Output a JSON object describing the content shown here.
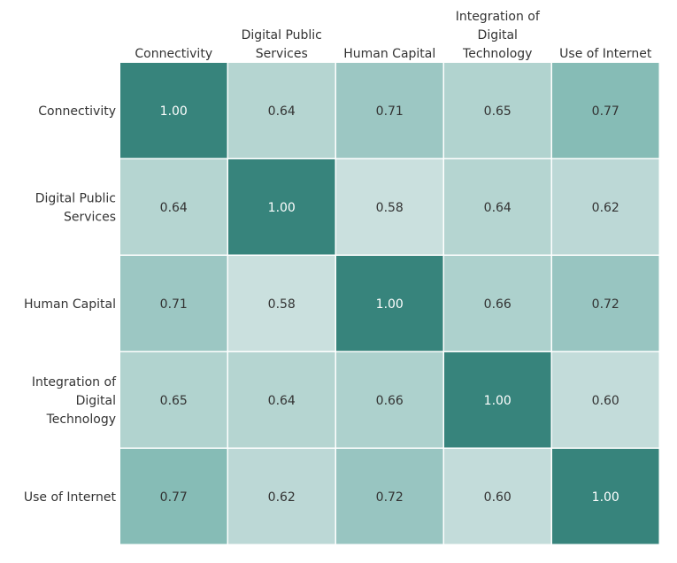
{
  "chart_data": {
    "type": "heatmap",
    "title": "",
    "x_categories": [
      "Connectivity",
      "Digital Public Services",
      "Human Capital",
      "Integration of Digital Technology",
      "Use of Internet"
    ],
    "y_categories": [
      "Connectivity",
      "Digital Public Services",
      "Human Capital",
      "Integration of Digital Technology",
      "Use of Internet"
    ],
    "x_labels_display": [
      [
        "Connectivity"
      ],
      [
        "Digital Public",
        "Services"
      ],
      [
        "Human Capital"
      ],
      [
        "Integration of",
        "Digital",
        "Technology"
      ],
      [
        "Use of Internet"
      ]
    ],
    "y_labels_display": [
      [
        "Connectivity"
      ],
      [
        "Digital Public",
        "Services"
      ],
      [
        "Human Capital"
      ],
      [
        "Integration of",
        "Digital",
        "Technology"
      ],
      [
        "Use of Internet"
      ]
    ],
    "values": [
      [
        1.0,
        0.64,
        0.71,
        0.65,
        0.77
      ],
      [
        0.64,
        1.0,
        0.58,
        0.64,
        0.62
      ],
      [
        0.71,
        0.58,
        1.0,
        0.66,
        0.72
      ],
      [
        0.65,
        0.64,
        0.66,
        1.0,
        0.6
      ],
      [
        0.77,
        0.62,
        0.72,
        0.6,
        1.0
      ]
    ],
    "value_labels": [
      [
        "1.00",
        "0.64",
        "0.71",
        "0.65",
        "0.77"
      ],
      [
        "0.64",
        "1.00",
        "0.58",
        "0.64",
        "0.62"
      ],
      [
        "0.71",
        "0.58",
        "1.00",
        "0.66",
        "0.72"
      ],
      [
        "0.65",
        "0.64",
        "0.66",
        "1.00",
        "0.60"
      ],
      [
        "0.77",
        "0.62",
        "0.72",
        "0.60",
        "1.00"
      ]
    ],
    "color_scale": {
      "low_value": 0.58,
      "high_value": 1.0,
      "low_color": "#CAE0DE",
      "mid_color": "#7FB8B2",
      "high_color": "#37847C"
    },
    "text_color_dark": "#333333",
    "text_color_light": "#ffffff",
    "legend": "none",
    "grid": false
  }
}
